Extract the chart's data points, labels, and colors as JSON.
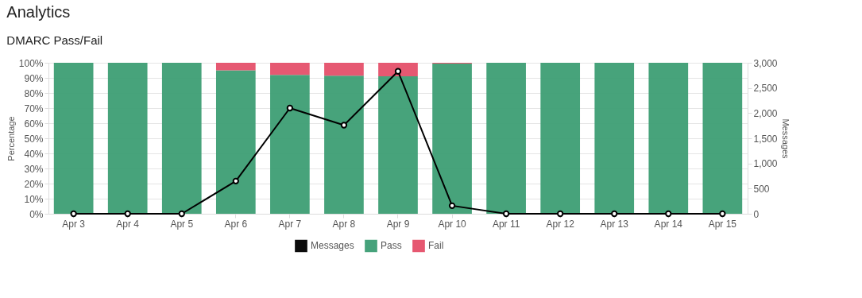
{
  "chart_data": {
    "type": "bar",
    "title": "Analytics",
    "subtitle": "DMARC Pass/Fail",
    "ylabel": "Percentage",
    "y2label": "Messages",
    "categories": [
      "Apr 3",
      "Apr 4",
      "Apr 5",
      "Apr 6",
      "Apr 7",
      "Apr 8",
      "Apr 9",
      "Apr 10",
      "Apr 11",
      "Apr 12",
      "Apr 13",
      "Apr 14",
      "Apr 15"
    ],
    "stacked": true,
    "series": [
      {
        "name": "Messages",
        "type": "line",
        "axis": "y2",
        "color": "#000000",
        "values": [
          0,
          0,
          0,
          650,
          2100,
          1760,
          2830,
          160,
          0,
          0,
          0,
          0,
          0
        ]
      },
      {
        "name": "Pass",
        "color": "#3d9e74",
        "values": [
          100,
          100,
          100,
          95,
          92,
          91.5,
          91,
          99.5,
          100,
          100,
          100,
          100,
          100
        ]
      },
      {
        "name": "Fail",
        "color": "#e5506a",
        "values": [
          0,
          0,
          0,
          5,
          8,
          8.5,
          9,
          0.5,
          0,
          0,
          0,
          0,
          0
        ]
      }
    ],
    "ylim": [
      0,
      100
    ],
    "yticks": [
      {
        "value": 0,
        "label": "0%"
      },
      {
        "value": 10,
        "label": "10%"
      },
      {
        "value": 20,
        "label": "20%"
      },
      {
        "value": 30,
        "label": "30%"
      },
      {
        "value": 40,
        "label": "40%"
      },
      {
        "value": 50,
        "label": "50%"
      },
      {
        "value": 60,
        "label": "60%"
      },
      {
        "value": 70,
        "label": "70%"
      },
      {
        "value": 80,
        "label": "80%"
      },
      {
        "value": 90,
        "label": "90%"
      },
      {
        "value": 100,
        "label": "100%"
      }
    ],
    "y2lim": [
      0,
      3000
    ],
    "y2ticks": [
      0,
      500,
      {
        "value": 1000,
        "label": "1,000"
      },
      {
        "value": 1500,
        "label": "1,500"
      },
      {
        "value": 2000,
        "label": "2,000"
      },
      {
        "value": 2500,
        "label": "2,500"
      },
      {
        "value": 3000,
        "label": "3,000"
      }
    ],
    "grid": "y",
    "legend": "bottom",
    "marker": "circle",
    "line_style": "solid"
  }
}
